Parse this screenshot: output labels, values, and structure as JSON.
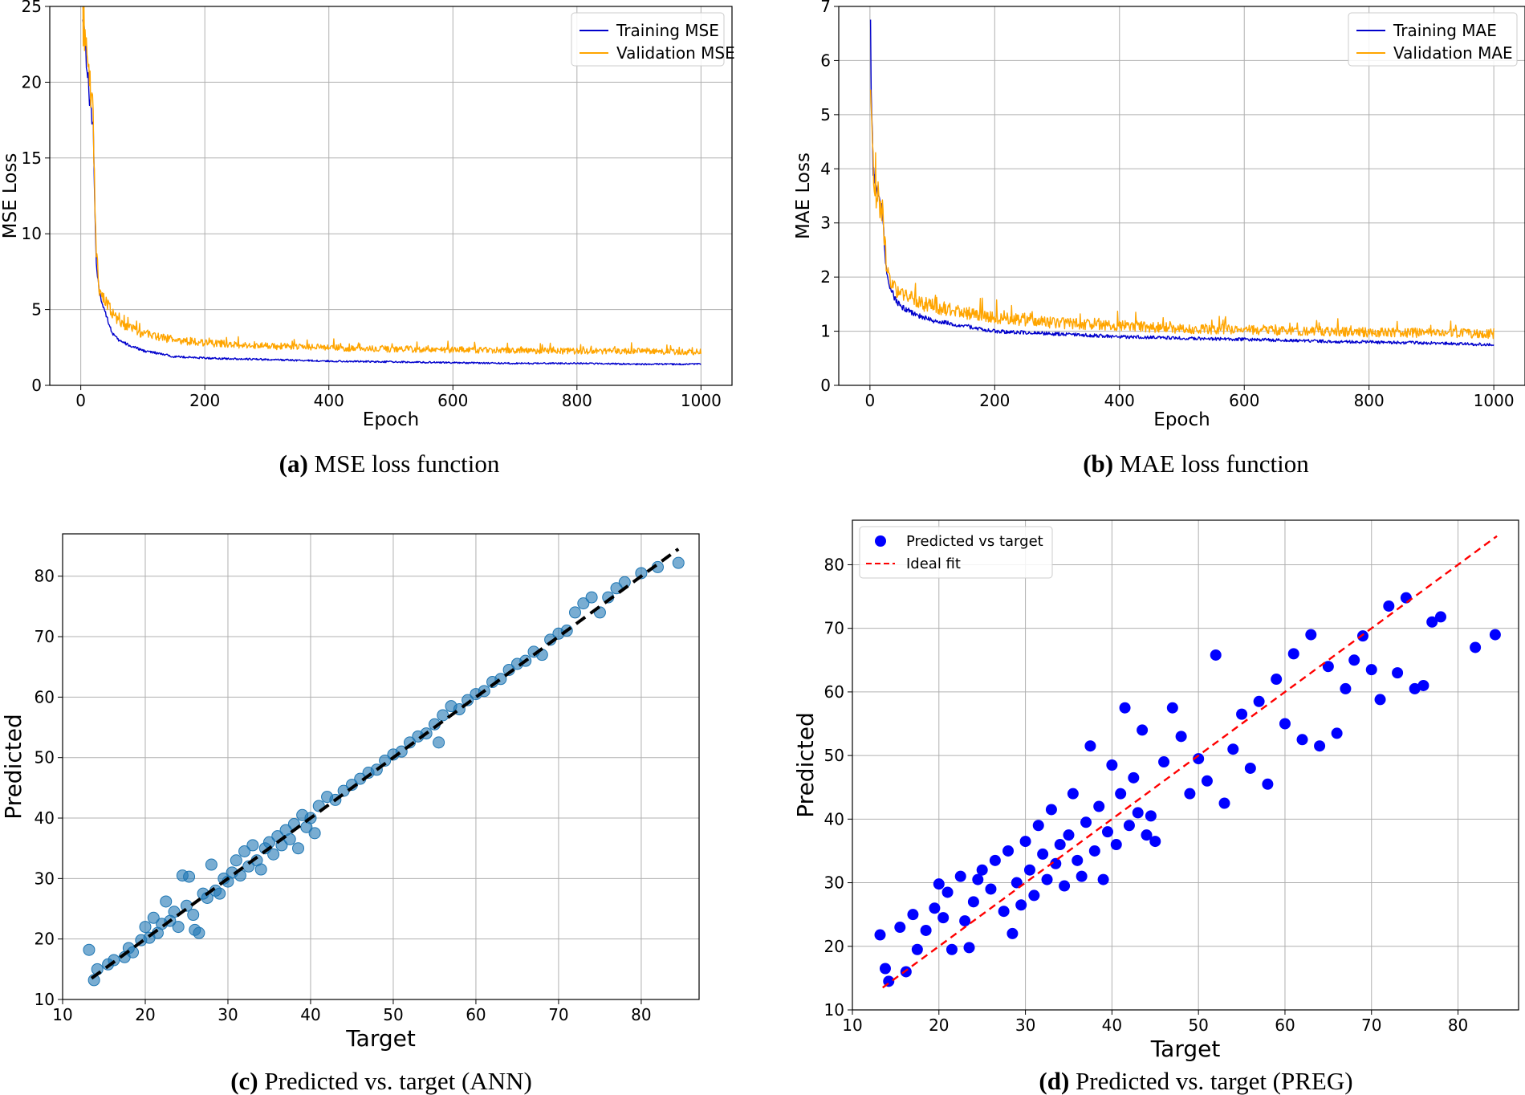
{
  "chart_data": [
    {
      "id": "a",
      "type": "line",
      "caption_letter": "(a)",
      "caption_text": " MSE loss function",
      "xlabel": "Epoch",
      "ylabel": "MSE Loss",
      "xlim": [
        -50,
        1050
      ],
      "ylim": [
        0,
        25
      ],
      "xticks": [
        0,
        200,
        400,
        600,
        800,
        1000
      ],
      "yticks": [
        0,
        5,
        10,
        15,
        20,
        25
      ],
      "grid": true,
      "legend_position": "top-right",
      "series": [
        {
          "name": "Training MSE",
          "color": "#0000cc",
          "x": [
            3,
            10,
            15,
            20,
            25,
            30,
            40,
            50,
            60,
            80,
            100,
            150,
            200,
            300,
            400,
            500,
            600,
            700,
            800,
            900,
            1000
          ],
          "y": [
            25.0,
            21.0,
            18.5,
            17.0,
            8.0,
            6.0,
            4.8,
            3.5,
            3.0,
            2.6,
            2.3,
            1.9,
            1.8,
            1.7,
            1.6,
            1.55,
            1.5,
            1.45,
            1.45,
            1.4,
            1.4
          ]
        },
        {
          "name": "Validation MSE",
          "color": "#ffa500",
          "x": [
            3,
            10,
            15,
            20,
            25,
            30,
            40,
            50,
            60,
            80,
            100,
            150,
            200,
            300,
            400,
            500,
            600,
            700,
            800,
            900,
            1000
          ],
          "y": [
            25.0,
            21.5,
            19.5,
            17.5,
            8.5,
            6.5,
            5.5,
            4.8,
            4.3,
            3.8,
            3.4,
            3.0,
            2.8,
            2.6,
            2.5,
            2.4,
            2.35,
            2.3,
            2.25,
            2.25,
            2.2
          ]
        }
      ]
    },
    {
      "id": "b",
      "type": "line",
      "caption_letter": "(b)",
      "caption_text": " MAE loss function",
      "xlabel": "Epoch",
      "ylabel": "MAE Loss",
      "xlim": [
        -50,
        1050
      ],
      "ylim": [
        0,
        7
      ],
      "xticks": [
        0,
        200,
        400,
        600,
        800,
        1000
      ],
      "yticks": [
        0,
        1,
        2,
        3,
        4,
        5,
        6,
        7
      ],
      "grid": true,
      "legend_position": "top-right",
      "series": [
        {
          "name": "Training MAE",
          "color": "#0000cc",
          "x": [
            1,
            2,
            5,
            10,
            15,
            20,
            25,
            30,
            40,
            50,
            75,
            100,
            150,
            200,
            300,
            400,
            500,
            600,
            700,
            800,
            900,
            1000
          ],
          "y": [
            7.0,
            5.5,
            4.0,
            3.6,
            3.4,
            3.2,
            2.3,
            1.9,
            1.6,
            1.45,
            1.3,
            1.2,
            1.1,
            1.0,
            0.95,
            0.9,
            0.87,
            0.85,
            0.82,
            0.8,
            0.78,
            0.75
          ]
        },
        {
          "name": "Validation MAE",
          "color": "#ffa500",
          "x": [
            1,
            2,
            5,
            10,
            15,
            20,
            25,
            30,
            40,
            50,
            75,
            100,
            150,
            200,
            300,
            400,
            500,
            600,
            700,
            800,
            900,
            1000
          ],
          "y": [
            6.0,
            5.0,
            4.0,
            3.6,
            3.4,
            3.2,
            2.4,
            2.0,
            1.8,
            1.7,
            1.55,
            1.45,
            1.35,
            1.25,
            1.15,
            1.1,
            1.05,
            1.02,
            1.0,
            0.98,
            0.97,
            0.95
          ]
        }
      ]
    },
    {
      "id": "c",
      "type": "scatter",
      "caption_letter": "(c)",
      "caption_text": " Predicted vs. target (ANN)",
      "xlabel": "Target",
      "ylabel": "Predicted",
      "xlim": [
        10,
        87
      ],
      "ylim": [
        10,
        87
      ],
      "xticks": [
        10,
        20,
        30,
        40,
        50,
        60,
        70,
        80
      ],
      "yticks": [
        10,
        20,
        30,
        40,
        50,
        60,
        70,
        80
      ],
      "grid": true,
      "point_color": "#1f77b4",
      "fit_line": {
        "x": [
          13.5,
          84.5
        ],
        "y": [
          13.5,
          84.5
        ],
        "color": "#000000",
        "style": "dashed"
      },
      "points": [
        [
          13.2,
          18.2
        ],
        [
          13.8,
          13.2
        ],
        [
          14.2,
          15.0
        ],
        [
          15.5,
          15.8
        ],
        [
          16.2,
          16.5
        ],
        [
          17.5,
          17.0
        ],
        [
          18.0,
          18.5
        ],
        [
          18.5,
          17.8
        ],
        [
          19.5,
          19.8
        ],
        [
          20.0,
          22.0
        ],
        [
          20.5,
          20.2
        ],
        [
          21.0,
          23.5
        ],
        [
          21.5,
          21.0
        ],
        [
          22.0,
          22.5
        ],
        [
          22.5,
          26.2
        ],
        [
          23.0,
          23.0
        ],
        [
          23.5,
          24.5
        ],
        [
          24.0,
          22.0
        ],
        [
          24.5,
          30.5
        ],
        [
          25.0,
          25.5
        ],
        [
          25.3,
          30.3
        ],
        [
          25.8,
          24.0
        ],
        [
          26.0,
          21.5
        ],
        [
          26.5,
          21.0
        ],
        [
          27.0,
          27.5
        ],
        [
          27.5,
          26.8
        ],
        [
          28.0,
          32.3
        ],
        [
          28.5,
          28.0
        ],
        [
          29.0,
          27.5
        ],
        [
          29.5,
          30.0
        ],
        [
          30.0,
          29.5
        ],
        [
          30.5,
          31.0
        ],
        [
          31.0,
          33.0
        ],
        [
          31.5,
          30.5
        ],
        [
          32.0,
          34.5
        ],
        [
          32.5,
          32.0
        ],
        [
          33.0,
          35.5
        ],
        [
          33.5,
          33.0
        ],
        [
          34.0,
          31.5
        ],
        [
          34.5,
          35.0
        ],
        [
          35.0,
          36.0
        ],
        [
          35.5,
          34.0
        ],
        [
          36.0,
          37.0
        ],
        [
          36.5,
          35.5
        ],
        [
          37.0,
          38.0
        ],
        [
          37.5,
          36.5
        ],
        [
          38.0,
          39.0
        ],
        [
          38.5,
          35.0
        ],
        [
          39.0,
          40.5
        ],
        [
          39.5,
          38.5
        ],
        [
          40.0,
          40.0
        ],
        [
          40.5,
          37.5
        ],
        [
          41.0,
          42.0
        ],
        [
          42.0,
          43.5
        ],
        [
          43.0,
          43.0
        ],
        [
          44.0,
          44.5
        ],
        [
          45.0,
          45.5
        ],
        [
          46.0,
          46.5
        ],
        [
          47.0,
          47.5
        ],
        [
          48.0,
          48.0
        ],
        [
          49.0,
          49.5
        ],
        [
          50.0,
          50.5
        ],
        [
          51.0,
          51.0
        ],
        [
          52.0,
          52.5
        ],
        [
          53.0,
          53.5
        ],
        [
          54.0,
          54.0
        ],
        [
          55.0,
          55.5
        ],
        [
          55.5,
          52.5
        ],
        [
          56.0,
          57.0
        ],
        [
          57.0,
          58.5
        ],
        [
          58.0,
          58.0
        ],
        [
          59.0,
          59.5
        ],
        [
          60.0,
          60.5
        ],
        [
          61.0,
          61.0
        ],
        [
          62.0,
          62.5
        ],
        [
          63.0,
          63.0
        ],
        [
          64.0,
          64.5
        ],
        [
          65.0,
          65.5
        ],
        [
          66.0,
          66.0
        ],
        [
          67.0,
          67.5
        ],
        [
          68.0,
          67.0
        ],
        [
          69.0,
          69.5
        ],
        [
          70.0,
          70.5
        ],
        [
          71.0,
          71.0
        ],
        [
          72.0,
          74.0
        ],
        [
          73.0,
          75.5
        ],
        [
          74.0,
          76.5
        ],
        [
          75.0,
          74.0
        ],
        [
          76.0,
          76.5
        ],
        [
          77.0,
          78.0
        ],
        [
          78.0,
          79.0
        ],
        [
          80.0,
          80.5
        ],
        [
          82.0,
          81.5
        ],
        [
          84.5,
          82.2
        ]
      ]
    },
    {
      "id": "d",
      "type": "scatter",
      "caption_letter": "(d)",
      "caption_text": " Predicted vs. target (PREG)",
      "xlabel": "Target",
      "ylabel": "Predicted",
      "xlim": [
        10,
        87
      ],
      "ylim": [
        10,
        87
      ],
      "xticks": [
        10,
        20,
        30,
        40,
        50,
        60,
        70,
        80
      ],
      "yticks": [
        10,
        20,
        30,
        40,
        50,
        60,
        70,
        80
      ],
      "grid": true,
      "point_color": "#0000ff",
      "legend_position": "top-left",
      "legend": [
        "Predicted vs target",
        "Ideal fit"
      ],
      "fit_line": {
        "x": [
          13.5,
          84.5
        ],
        "y": [
          13.5,
          84.5
        ],
        "color": "#ff0000",
        "style": "dashed"
      },
      "points": [
        [
          13.2,
          21.8
        ],
        [
          13.8,
          16.5
        ],
        [
          14.2,
          14.5
        ],
        [
          15.5,
          23.0
        ],
        [
          16.2,
          16.0
        ],
        [
          17.0,
          25.0
        ],
        [
          17.5,
          19.5
        ],
        [
          18.5,
          22.5
        ],
        [
          19.5,
          26.0
        ],
        [
          20.0,
          29.8
        ],
        [
          20.5,
          24.5
        ],
        [
          21.0,
          28.5
        ],
        [
          21.5,
          19.5
        ],
        [
          22.5,
          31.0
        ],
        [
          23.0,
          24.0
        ],
        [
          23.5,
          19.8
        ],
        [
          24.0,
          27.0
        ],
        [
          24.5,
          30.5
        ],
        [
          25.0,
          32.0
        ],
        [
          26.0,
          29.0
        ],
        [
          26.5,
          33.5
        ],
        [
          27.5,
          25.5
        ],
        [
          28.0,
          35.0
        ],
        [
          28.5,
          22.0
        ],
        [
          29.0,
          30.0
        ],
        [
          29.5,
          26.5
        ],
        [
          30.0,
          36.5
        ],
        [
          30.5,
          32.0
        ],
        [
          31.0,
          28.0
        ],
        [
          31.5,
          39.0
        ],
        [
          32.0,
          34.5
        ],
        [
          32.5,
          30.5
        ],
        [
          33.0,
          41.5
        ],
        [
          33.5,
          33.0
        ],
        [
          34.0,
          36.0
        ],
        [
          34.5,
          29.5
        ],
        [
          35.0,
          37.5
        ],
        [
          35.5,
          44.0
        ],
        [
          36.0,
          33.5
        ],
        [
          36.5,
          31.0
        ],
        [
          37.0,
          39.5
        ],
        [
          37.5,
          51.5
        ],
        [
          38.0,
          35.0
        ],
        [
          38.5,
          42.0
        ],
        [
          39.0,
          30.5
        ],
        [
          39.5,
          38.0
        ],
        [
          40.0,
          48.5
        ],
        [
          40.5,
          36.0
        ],
        [
          41.0,
          44.0
        ],
        [
          41.5,
          57.5
        ],
        [
          42.0,
          39.0
        ],
        [
          42.5,
          46.5
        ],
        [
          43.0,
          41.0
        ],
        [
          43.5,
          54.0
        ],
        [
          44.0,
          37.5
        ],
        [
          44.5,
          40.5
        ],
        [
          45.0,
          36.5
        ],
        [
          46.0,
          49.0
        ],
        [
          47.0,
          57.5
        ],
        [
          48.0,
          53.0
        ],
        [
          49.0,
          44.0
        ],
        [
          50.0,
          49.5
        ],
        [
          51.0,
          46.0
        ],
        [
          52.0,
          65.8
        ],
        [
          53.0,
          42.5
        ],
        [
          54.0,
          51.0
        ],
        [
          55.0,
          56.5
        ],
        [
          56.0,
          48.0
        ],
        [
          57.0,
          58.5
        ],
        [
          58.0,
          45.5
        ],
        [
          59.0,
          62.0
        ],
        [
          60.0,
          55.0
        ],
        [
          61.0,
          66.0
        ],
        [
          62.0,
          52.5
        ],
        [
          63.0,
          69.0
        ],
        [
          64.0,
          51.5
        ],
        [
          65.0,
          64.0
        ],
        [
          66.0,
          53.5
        ],
        [
          67.0,
          60.5
        ],
        [
          68.0,
          65.0
        ],
        [
          69.0,
          68.8
        ],
        [
          70.0,
          63.5
        ],
        [
          71.0,
          58.8
        ],
        [
          72.0,
          73.5
        ],
        [
          73.0,
          63.0
        ],
        [
          74.0,
          74.8
        ],
        [
          75.0,
          60.5
        ],
        [
          76.0,
          61.0
        ],
        [
          77.0,
          71.0
        ],
        [
          78.0,
          71.8
        ],
        [
          82.0,
          67.0
        ],
        [
          84.3,
          69.0
        ]
      ]
    }
  ]
}
